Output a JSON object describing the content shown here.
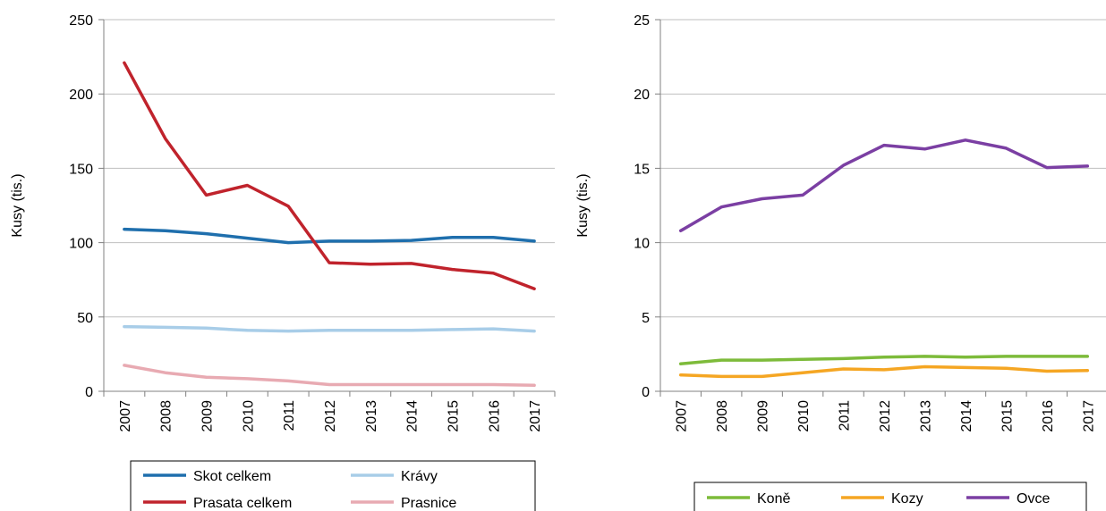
{
  "chart_data": [
    {
      "type": "line",
      "title": "",
      "ylabel": "Kusy (tis.)",
      "xlabel": "",
      "ylim": [
        0,
        250
      ],
      "yticks": [
        "0",
        "50",
        "100",
        "150",
        "200",
        "250"
      ],
      "categories": [
        "2007",
        "2008",
        "2009",
        "2010",
        "2011",
        "2012",
        "2013",
        "2014",
        "2015",
        "2016",
        "2017"
      ],
      "grid": true,
      "legend_position": "bottom",
      "series": [
        {
          "name": "Skot celkem",
          "color": "#1f6fad",
          "values": [
            109,
            108,
            106,
            103,
            100,
            101,
            101,
            101.5,
            103.5,
            103.5,
            101
          ]
        },
        {
          "name": "Krávy",
          "color": "#a8cde8",
          "values": [
            43.5,
            43,
            42.5,
            41,
            40.5,
            41,
            41,
            41,
            41.5,
            42,
            40.5
          ]
        },
        {
          "name": "Prasata celkem",
          "color": "#c0232c",
          "values": [
            221,
            170,
            132,
            138.5,
            124.5,
            86.5,
            85.5,
            86,
            82,
            79.5,
            69
          ]
        },
        {
          "name": "Prasnice",
          "color": "#e8aab2",
          "values": [
            17.5,
            12.5,
            9.5,
            8.5,
            7,
            4.5,
            4.5,
            4.5,
            4.5,
            4.5,
            4
          ]
        }
      ]
    },
    {
      "type": "line",
      "title": "",
      "ylabel": "Kusy (tis.)",
      "xlabel": "",
      "ylim": [
        0,
        25
      ],
      "yticks": [
        "0",
        "5",
        "10",
        "15",
        "20",
        "25"
      ],
      "categories": [
        "2007",
        "2008",
        "2009",
        "2010",
        "2011",
        "2012",
        "2013",
        "2014",
        "2015",
        "2016",
        "2017"
      ],
      "grid": true,
      "legend_position": "bottom",
      "series": [
        {
          "name": "Koně",
          "color": "#7dbb3a",
          "values": [
            1.85,
            2.1,
            2.1,
            2.15,
            2.2,
            2.3,
            2.35,
            2.3,
            2.35,
            2.35,
            2.35
          ]
        },
        {
          "name": "Kozy",
          "color": "#f5a623",
          "values": [
            1.1,
            1.0,
            1.0,
            1.25,
            1.5,
            1.45,
            1.65,
            1.6,
            1.55,
            1.35,
            1.4
          ]
        },
        {
          "name": "Ovce",
          "color": "#7b3fa3",
          "values": [
            10.8,
            12.4,
            12.95,
            13.2,
            15.2,
            16.55,
            16.3,
            16.9,
            16.35,
            15.05,
            15.15
          ]
        }
      ]
    }
  ]
}
